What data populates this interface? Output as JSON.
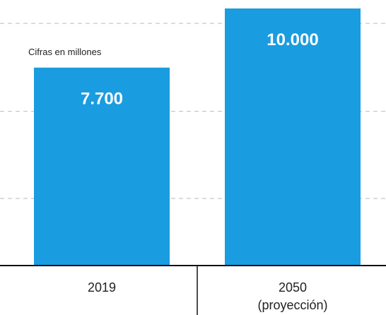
{
  "chart_data": {
    "type": "bar",
    "note": "Cifras en millones",
    "categories": [
      "2019",
      "2050\n(proyección)"
    ],
    "values": [
      7700,
      10000
    ],
    "value_labels": [
      "7.700",
      "10.000"
    ],
    "bar_color": "#1a9ce0",
    "grid": true,
    "grid_style": "dashed",
    "ylim": [
      0,
      10000
    ]
  }
}
